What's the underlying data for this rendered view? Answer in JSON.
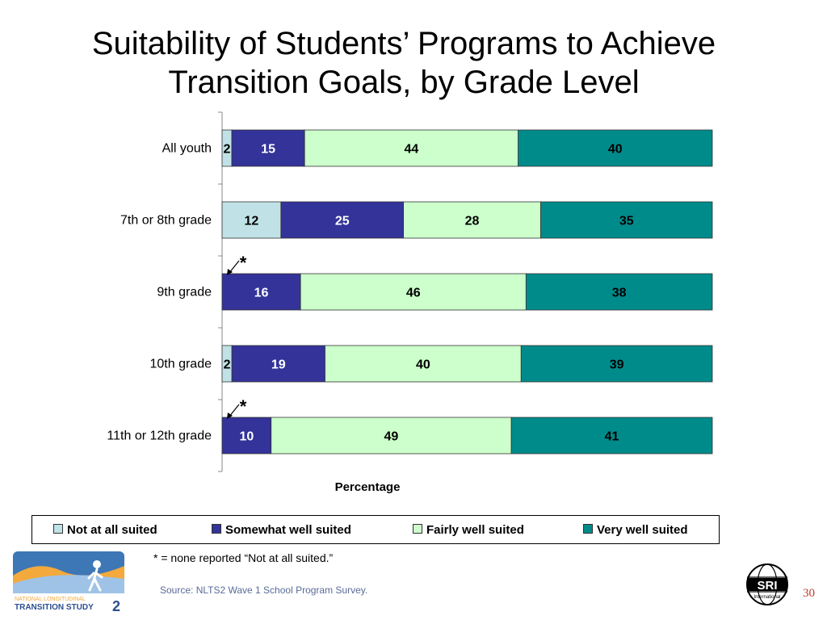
{
  "slide": {
    "title_line1": "Suitability of Students’ Programs to Achieve",
    "title_line2": "Transition Goals, by Grade Level",
    "footnote": "* = none reported “Not at all suited.”",
    "source": "Source:  NLTS2 Wave 1 School Program Survey.",
    "page_number": "30",
    "logo_left_text_line1": "NATIONAL LONGITUDINAL",
    "logo_left_text_line2": "TRANSITION STUDY",
    "logo_left_number": "2",
    "logo_right_text": "SRI",
    "logo_right_subtext": "International"
  },
  "chart_data": {
    "type": "bar",
    "orientation": "horizontal",
    "stacked": true,
    "categories": [
      "All youth",
      "7th or 8th grade",
      "9th grade",
      "10th grade",
      "11th or 12th grade"
    ],
    "series": [
      {
        "name": "Not at all suited",
        "color": "#c0e2e6",
        "values": [
          2,
          12,
          0,
          2,
          0
        ]
      },
      {
        "name": "Somewhat well suited",
        "color": "#333399",
        "values": [
          15,
          25,
          16,
          19,
          10
        ]
      },
      {
        "name": "Fairly well suited",
        "color": "#ccffcc",
        "values": [
          44,
          28,
          46,
          40,
          49
        ]
      },
      {
        "name": "Very well suited",
        "color": "#008b8b",
        "values": [
          40,
          35,
          38,
          39,
          41
        ]
      }
    ],
    "data_labels": [
      [
        "2",
        "15",
        "44",
        "40"
      ],
      [
        "12",
        "25",
        "28",
        "35"
      ],
      [
        "",
        "16",
        "46",
        "38"
      ],
      [
        "2",
        "19",
        "40",
        "39"
      ],
      [
        "",
        "10",
        "49",
        "41"
      ]
    ],
    "annotations": [
      {
        "category": "9th grade",
        "text": "*"
      },
      {
        "category": "11th or 12th grade",
        "text": "*"
      }
    ],
    "xlabel": "Percentage",
    "ylabel": "",
    "legend_position": "bottom",
    "grid": false
  }
}
